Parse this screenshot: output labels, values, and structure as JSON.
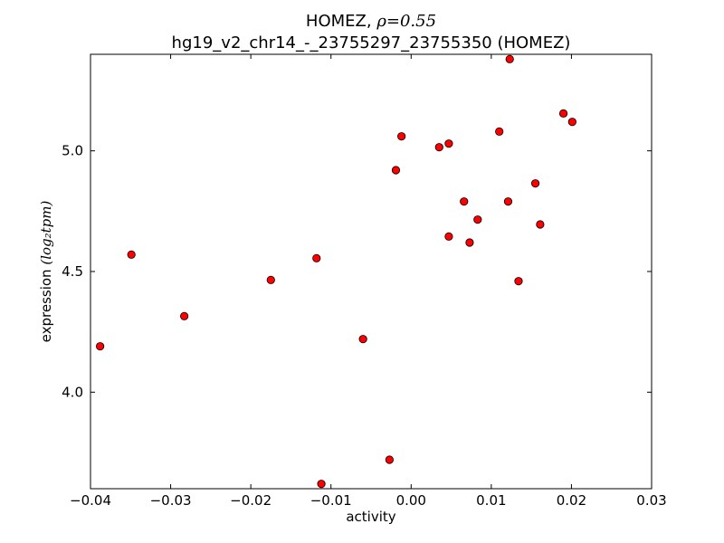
{
  "chart_data": {
    "type": "scatter",
    "title": "HOMEZ, ρ=0.55",
    "title_prefix": "HOMEZ, ",
    "title_math": "ρ=0.55",
    "subtitle": "hg19_v2_chr14_-_23755297_23755350 (HOMEZ)",
    "xlabel": "activity",
    "ylabel": "expression",
    "ylabel_unit": "(log₂tpm)",
    "xlim": [
      -0.04,
      0.03
    ],
    "ylim": [
      3.6,
      5.4
    ],
    "xticks": [
      -0.04,
      -0.03,
      -0.02,
      -0.01,
      0.0,
      0.01,
      0.02,
      0.03
    ],
    "xtick_labels": [
      "−0.04",
      "−0.03",
      "−0.02",
      "−0.01",
      "0.00",
      "0.01",
      "0.02",
      "0.03"
    ],
    "yticks": [
      4.0,
      4.5,
      5.0
    ],
    "ytick_labels": [
      "4.0",
      "4.5",
      "5.0"
    ],
    "grid": false,
    "marker_color": "#ff0000",
    "marker_edge_color": "#000000",
    "series": [
      {
        "x": [
          -0.0388,
          -0.0349,
          -0.0283,
          -0.0175,
          -0.0118,
          -0.0112,
          -0.006,
          -0.0027,
          -0.0019,
          -0.0012,
          0.0035,
          0.0047,
          0.0047,
          0.0066,
          0.0073,
          0.0083,
          0.011,
          0.0121,
          0.0123,
          0.0134,
          0.0155,
          0.0161,
          0.019,
          0.0201
        ],
        "y": [
          4.19,
          4.57,
          4.315,
          4.465,
          4.555,
          3.62,
          4.22,
          3.72,
          4.92,
          5.06,
          5.015,
          5.03,
          4.645,
          4.79,
          4.62,
          4.715,
          5.08,
          4.79,
          5.38,
          4.46,
          4.865,
          4.695,
          5.155,
          5.12
        ]
      }
    ]
  }
}
